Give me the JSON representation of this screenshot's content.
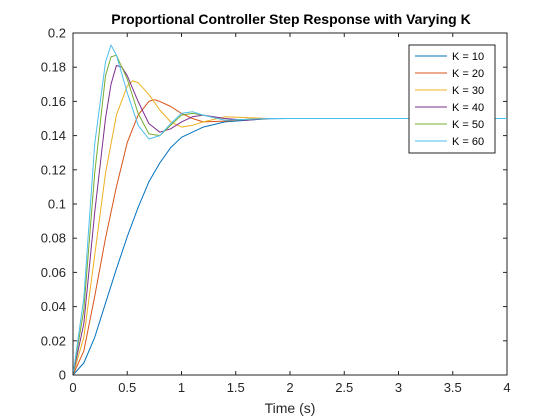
{
  "chart_data": {
    "type": "line",
    "title": "Proportional Controller Step Response with Varying K",
    "xlabel": "Time (s)",
    "ylabel": "",
    "xlim": [
      0,
      4
    ],
    "ylim": [
      0,
      0.2
    ],
    "xticks": [
      "0",
      "0.5",
      "1",
      "1.5",
      "2",
      "2.5",
      "3",
      "3.5",
      "4"
    ],
    "yticks": [
      "0",
      "0.02",
      "0.04",
      "0.06",
      "0.08",
      "0.1",
      "0.12",
      "0.14",
      "0.16",
      "0.18",
      "0.2"
    ],
    "grid": false,
    "legend_position": "top-right",
    "series": [
      {
        "name": "K = 10",
        "color": "#0072BD",
        "x": [
          0,
          0.1,
          0.2,
          0.3,
          0.4,
          0.5,
          0.6,
          0.7,
          0.8,
          0.9,
          1.0,
          1.2,
          1.4,
          1.6,
          1.8,
          2.0,
          2.5,
          3.0,
          3.5,
          4.0
        ],
        "y": [
          0,
          0.007,
          0.022,
          0.042,
          0.062,
          0.081,
          0.098,
          0.113,
          0.124,
          0.133,
          0.139,
          0.145,
          0.148,
          0.149,
          0.1498,
          0.15,
          0.15,
          0.15,
          0.15,
          0.15
        ]
      },
      {
        "name": "K = 20",
        "color": "#D95319",
        "x": [
          0,
          0.1,
          0.2,
          0.3,
          0.4,
          0.5,
          0.6,
          0.7,
          0.75,
          0.8,
          0.9,
          1.0,
          1.1,
          1.2,
          1.4,
          1.6,
          1.8,
          2.0,
          2.5,
          3.0,
          3.5,
          4.0
        ],
        "y": [
          0,
          0.014,
          0.046,
          0.08,
          0.11,
          0.136,
          0.152,
          0.16,
          0.161,
          0.16,
          0.157,
          0.153,
          0.15,
          0.148,
          0.1485,
          0.1495,
          0.15,
          0.15,
          0.15,
          0.15,
          0.15,
          0.15
        ]
      },
      {
        "name": "K = 30",
        "color": "#EDB120",
        "x": [
          0,
          0.1,
          0.2,
          0.3,
          0.4,
          0.5,
          0.55,
          0.6,
          0.7,
          0.8,
          0.9,
          1.0,
          1.1,
          1.2,
          1.4,
          1.6,
          1.8,
          2.0,
          2.5,
          3.0,
          3.5,
          4.0
        ],
        "y": [
          0,
          0.022,
          0.07,
          0.118,
          0.152,
          0.169,
          0.172,
          0.171,
          0.164,
          0.155,
          0.148,
          0.145,
          0.146,
          0.148,
          0.151,
          0.1505,
          0.15,
          0.15,
          0.15,
          0.15,
          0.15,
          0.15
        ]
      },
      {
        "name": "K = 40",
        "color": "#7E2F8E",
        "x": [
          0,
          0.1,
          0.2,
          0.3,
          0.35,
          0.4,
          0.45,
          0.5,
          0.6,
          0.7,
          0.8,
          0.9,
          1.0,
          1.1,
          1.2,
          1.4,
          1.6,
          1.8,
          2.0,
          2.5,
          3.0,
          3.5,
          4.0
        ],
        "y": [
          0,
          0.03,
          0.095,
          0.15,
          0.17,
          0.181,
          0.18,
          0.175,
          0.16,
          0.147,
          0.142,
          0.144,
          0.148,
          0.151,
          0.152,
          0.15,
          0.149,
          0.15,
          0.15,
          0.15,
          0.15,
          0.15,
          0.15
        ]
      },
      {
        "name": "K = 50",
        "color": "#77AC30",
        "x": [
          0,
          0.1,
          0.2,
          0.3,
          0.35,
          0.4,
          0.5,
          0.6,
          0.7,
          0.8,
          0.9,
          1.0,
          1.1,
          1.2,
          1.4,
          1.6,
          1.8,
          2.0,
          2.5,
          3.0,
          3.5,
          4.0
        ],
        "y": [
          0,
          0.038,
          0.118,
          0.175,
          0.186,
          0.187,
          0.173,
          0.153,
          0.141,
          0.14,
          0.146,
          0.152,
          0.153,
          0.152,
          0.149,
          0.1495,
          0.15,
          0.15,
          0.15,
          0.15,
          0.15,
          0.15
        ]
      },
      {
        "name": "K = 60",
        "color": "#4DBEEE",
        "x": [
          0,
          0.1,
          0.2,
          0.3,
          0.35,
          0.4,
          0.5,
          0.6,
          0.7,
          0.8,
          0.9,
          1.0,
          1.1,
          1.2,
          1.4,
          1.6,
          1.8,
          2.0,
          2.5,
          3.0,
          3.5,
          4.0
        ],
        "y": [
          0,
          0.045,
          0.135,
          0.183,
          0.193,
          0.187,
          0.165,
          0.146,
          0.138,
          0.14,
          0.147,
          0.153,
          0.154,
          0.152,
          0.149,
          0.1495,
          0.15,
          0.15,
          0.15,
          0.15,
          0.15,
          0.15
        ]
      }
    ]
  }
}
